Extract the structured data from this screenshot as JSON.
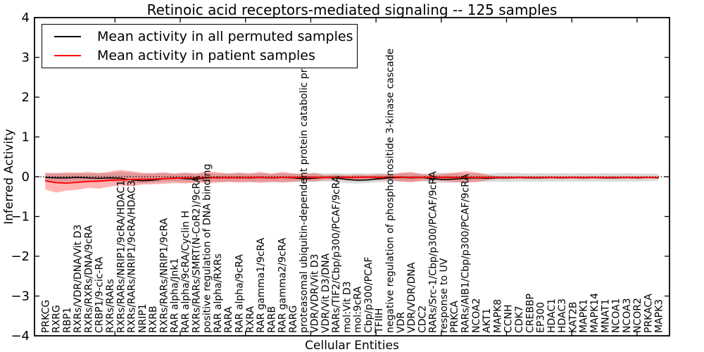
{
  "title": "Retinoic acid receptors-mediated signaling -- 125 samples",
  "axes": {
    "ylabel": "Inferred Activity",
    "xlabel": "Cellular Entities",
    "yticks": [
      4,
      3,
      2,
      1,
      0,
      -1,
      -2,
      -3,
      -4
    ]
  },
  "legend": {
    "items": [
      {
        "label": "Mean activity in all permuted samples",
        "color": "#000000"
      },
      {
        "label": "Mean activity in patient samples",
        "color": "#ff0000"
      }
    ]
  },
  "chart_data": {
    "type": "line",
    "title": "Retinoic acid receptors-mediated signaling -- 125 samples",
    "xlabel": "Cellular Entities",
    "ylabel": "Inferred Activity",
    "ylim": [
      -4,
      4
    ],
    "grid": false,
    "legend_position": "upper left",
    "zero_line": 0,
    "colors": {
      "permuted_line": "#000000",
      "patient_line": "#ff0000",
      "permuted_band": "rgba(0,0,0,0.15)",
      "patient_band": "rgba(255,0,0,0.30)"
    },
    "categories": [
      "PRKCG",
      "RXRG",
      "RBP1",
      "RXRs/VDR/DNA/Vit D3",
      "RXRs/RXRs/DNA/9cRA",
      "CRBP1/9-cic-RA",
      "RXRs/RARs",
      "RXRs/RARs/NRIP1/9cRA/HDAC1",
      "RXRs/RARs/NRIP1/9cRA/HDAC3",
      "NRIP1",
      "RXRB",
      "RXRs/RARs/NRIP1/9cRA",
      "RAR alpha/Jnk1",
      "RAR alpha/9cRA/Cyclin H",
      "RXRs/RARs/SMRT(N-CoR2)/9cRA",
      "positive regulation of DNA binding",
      "RAR alpha/RXRs",
      "RARA",
      "RAR alpha/9cRA",
      "RXRA",
      "RAR gamma1/9cRA",
      "RARB",
      "RAR gamma2/9cRA",
      "RARG",
      "proteasomal ubiquitin-dependent protein catabolic process",
      "VDR/VDR/Vit D3",
      "VDR/Vit D3/DNA",
      "RARs/TIF2/Cbp/p300/PCAF/9cRA",
      "mol:Vit D3",
      "mol:9cRA",
      "Cbp/p300/PCAF",
      "TFIIH",
      "negative regulation of phosphoinositide 3-kinase cascade",
      "VDR",
      "VDR/VDR/DNA",
      "CDC2",
      "RARs/Src-1/Cbp/p300/PCAF/9cRA",
      "response to UV",
      "PRKCA",
      "RARs/AIB1/Cbp/p300/PCAF/9cRA",
      "NCOA2",
      "AKT1",
      "MAPK8",
      "CCNH",
      "CDK7",
      "CREBBP",
      "EP300",
      "HDAC1",
      "HDAC3",
      "KAT2B",
      "MAPK1",
      "MAPK14",
      "MNAT1",
      "NCOA1",
      "NCOA3",
      "NCOR2",
      "PRKACA",
      "MAPK3"
    ],
    "series": [
      {
        "name": "Mean activity in all permuted samples",
        "mean": [
          -0.02,
          -0.03,
          -0.03,
          -0.02,
          -0.03,
          -0.04,
          -0.03,
          -0.04,
          -0.08,
          -0.1,
          -0.09,
          -0.05,
          -0.03,
          -0.05,
          -0.06,
          -0.03,
          -0.02,
          -0.03,
          -0.02,
          -0.03,
          -0.02,
          -0.03,
          -0.02,
          -0.03,
          -0.05,
          -0.04,
          -0.02,
          -0.03,
          -0.07,
          -0.09,
          -0.08,
          -0.05,
          -0.03,
          -0.02,
          -0.03,
          -0.02,
          -0.05,
          -0.07,
          -0.06,
          -0.04,
          -0.03,
          -0.04,
          -0.03,
          -0.03,
          -0.02,
          -0.03,
          -0.03,
          -0.02,
          -0.03,
          -0.02,
          -0.03,
          -0.02,
          -0.03,
          -0.03,
          -0.02,
          -0.03,
          -0.02,
          -0.03
        ],
        "band_upper": [
          0.08,
          0.09,
          0.08,
          0.09,
          0.08,
          0.09,
          0.09,
          0.12,
          0.1,
          0.08,
          0.08,
          0.09,
          0.08,
          0.1,
          0.08,
          0.09,
          0.08,
          0.09,
          0.1,
          0.08,
          0.09,
          0.08,
          0.09,
          0.08,
          0.09,
          0.1,
          0.08,
          0.09,
          0.08,
          0.09,
          0.08,
          0.09,
          0.08,
          0.09,
          0.1,
          0.08,
          0.09,
          0.1,
          0.09,
          0.08,
          0.09,
          0.08,
          0.09,
          0.1,
          0.09,
          0.08,
          0.09,
          0.08,
          0.09,
          0.08,
          0.09,
          0.08,
          0.09,
          0.08,
          0.09,
          0.08,
          0.08,
          0.07
        ],
        "band_lower": [
          -0.12,
          -0.14,
          -0.13,
          -0.12,
          -0.13,
          -0.14,
          -0.12,
          -0.14,
          -0.16,
          -0.17,
          -0.15,
          -0.13,
          -0.12,
          -0.14,
          -0.13,
          -0.12,
          -0.12,
          -0.13,
          -0.12,
          -0.13,
          -0.12,
          -0.13,
          -0.12,
          -0.13,
          -0.14,
          -0.13,
          -0.12,
          -0.13,
          -0.16,
          -0.17,
          -0.16,
          -0.14,
          -0.12,
          -0.12,
          -0.13,
          -0.12,
          -0.14,
          -0.16,
          -0.15,
          -0.13,
          -0.12,
          -0.13,
          -0.12,
          -0.13,
          -0.12,
          -0.12,
          -0.12,
          -0.12,
          -0.12,
          -0.12,
          -0.12,
          -0.12,
          -0.12,
          -0.12,
          -0.12,
          -0.12,
          -0.11,
          -0.1
        ]
      },
      {
        "name": "Mean activity in patient samples",
        "mean": [
          -0.1,
          -0.15,
          -0.16,
          -0.14,
          -0.12,
          -0.11,
          -0.09,
          -0.08,
          -0.07,
          -0.06,
          -0.06,
          -0.05,
          -0.04,
          -0.03,
          -0.03,
          -0.02,
          -0.03,
          -0.02,
          -0.03,
          -0.02,
          -0.02,
          -0.03,
          -0.02,
          -0.02,
          -0.01,
          -0.02,
          -0.02,
          -0.01,
          -0.02,
          -0.02,
          -0.01,
          -0.02,
          -0.01,
          -0.01,
          -0.02,
          -0.02,
          -0.01,
          -0.02,
          -0.02,
          -0.01,
          -0.02,
          -0.02,
          -0.02,
          -0.02,
          -0.02,
          -0.02,
          -0.02,
          -0.02,
          -0.02,
          -0.02,
          -0.02,
          -0.02,
          -0.02,
          -0.02,
          -0.02,
          -0.02,
          -0.02,
          -0.02
        ],
        "band_upper": [
          0.1,
          0.09,
          0.11,
          0.1,
          0.12,
          0.09,
          0.13,
          0.17,
          0.14,
          0.1,
          0.09,
          0.11,
          0.08,
          0.1,
          0.08,
          0.14,
          0.11,
          0.07,
          0.1,
          0.08,
          0.12,
          0.07,
          0.12,
          0.08,
          0.06,
          0.09,
          0.04,
          0.05,
          0.03,
          0.05,
          0.04,
          0.06,
          0.05,
          0.1,
          0.12,
          0.06,
          0.05,
          0.07,
          0.1,
          0.14,
          0.11,
          0.05,
          0.01,
          0.0,
          0.0,
          0.0,
          0.0,
          0.0,
          0.0,
          0.0,
          0.0,
          0.0,
          0.0,
          0.0,
          0.0,
          0.0,
          0.0,
          0.0
        ],
        "band_lower": [
          -0.32,
          -0.4,
          -0.35,
          -0.33,
          -0.28,
          -0.3,
          -0.25,
          -0.22,
          -0.24,
          -0.2,
          -0.19,
          -0.18,
          -0.16,
          -0.17,
          -0.15,
          -0.16,
          -0.15,
          -0.13,
          -0.15,
          -0.13,
          -0.16,
          -0.13,
          -0.15,
          -0.13,
          -0.1,
          -0.12,
          -0.08,
          -0.08,
          -0.07,
          -0.08,
          -0.07,
          -0.09,
          -0.08,
          -0.12,
          -0.14,
          -0.1,
          -0.09,
          -0.11,
          -0.13,
          -0.16,
          -0.14,
          -0.09,
          -0.05,
          -0.05,
          -0.05,
          -0.05,
          -0.05,
          -0.05,
          -0.05,
          -0.05,
          -0.05,
          -0.05,
          -0.05,
          -0.05,
          -0.05,
          -0.05,
          -0.04,
          -0.04
        ]
      }
    ]
  }
}
